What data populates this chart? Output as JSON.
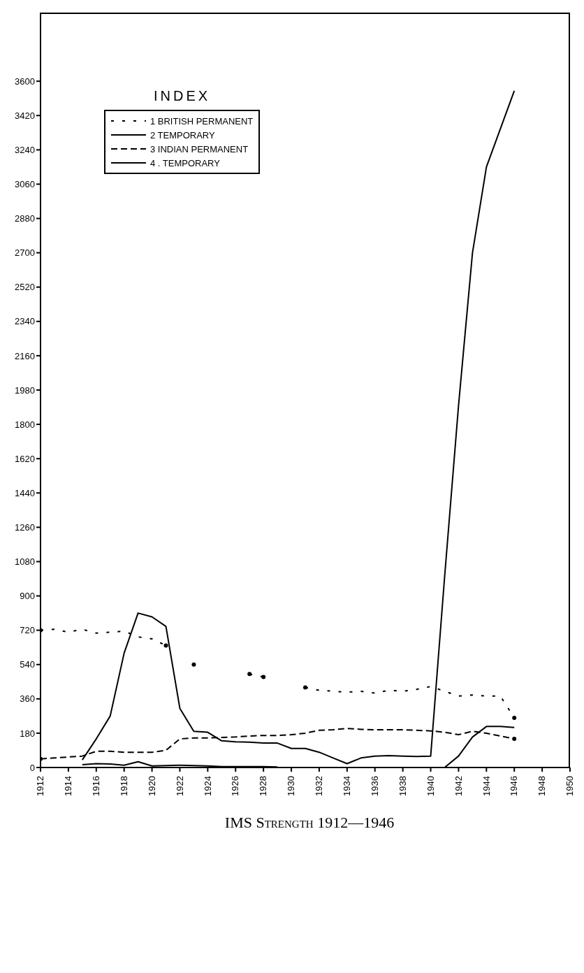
{
  "chart_data": {
    "type": "line",
    "xlabel": "IMS Strength 1912—1946",
    "legend_title": "INDEX",
    "legend": "top left",
    "x": [
      1912,
      1913,
      1914,
      1915,
      1916,
      1917,
      1918,
      1919,
      1920,
      1921,
      1922,
      1923,
      1924,
      1925,
      1926,
      1927,
      1928,
      1929,
      1930,
      1931,
      1932,
      1933,
      1934,
      1935,
      1936,
      1937,
      1938,
      1939,
      1940,
      1941,
      1942,
      1943,
      1944,
      1945,
      1946
    ],
    "xlim": [
      1912,
      1950
    ],
    "xticks": [
      1912,
      1914,
      1916,
      1918,
      1920,
      1922,
      1924,
      1926,
      1928,
      1930,
      1932,
      1934,
      1936,
      1938,
      1940,
      1942,
      1944,
      1946,
      1948,
      1950
    ],
    "ylim": [
      0,
      3960
    ],
    "yticks": [
      0,
      180,
      360,
      540,
      720,
      900,
      1080,
      1260,
      1440,
      1620,
      1800,
      1980,
      2160,
      2340,
      2520,
      2700,
      2880,
      3060,
      3240,
      3420,
      3600
    ],
    "marker": "none",
    "series": [
      {
        "name": "1 BRITISH PERMANENT",
        "color": "#000000",
        "line_style": "dotted",
        "values": [
          720,
          725,
          710,
          725,
          705,
          710,
          715,
          685,
          675,
          640,
          null,
          540,
          null,
          null,
          null,
          490,
          475,
          null,
          null,
          420,
          405,
          400,
          395,
          400,
          390,
          405,
          400,
          410,
          425,
          400,
          375,
          380,
          375,
          375,
          260
        ]
      },
      {
        "name": "2 TEMPORARY",
        "color": "#000000",
        "line_style": "solid",
        "values": [
          null,
          null,
          null,
          40,
          150,
          270,
          600,
          810,
          790,
          740,
          310,
          190,
          185,
          140,
          135,
          133,
          128,
          128,
          100,
          100,
          80,
          50,
          20,
          50,
          60,
          62,
          60,
          58,
          60,
          1000,
          1900,
          2700,
          3150,
          3350,
          3550
        ]
      },
      {
        "name": "3 INDIAN PERMANENT",
        "color": "#000000",
        "line_style": "dashed",
        "values": [
          45,
          50,
          55,
          60,
          85,
          85,
          80,
          80,
          80,
          90,
          150,
          155,
          155,
          158,
          160,
          165,
          168,
          168,
          172,
          180,
          195,
          198,
          205,
          200,
          198,
          198,
          198,
          195,
          192,
          185,
          172,
          190,
          180,
          165,
          150
        ]
      },
      {
        "name": "4 . TEMPORARY",
        "color": "#000000",
        "line_style": "solid",
        "values": [
          null,
          null,
          null,
          15,
          20,
          18,
          12,
          30,
          8,
          10,
          12,
          10,
          8,
          5,
          5,
          5,
          5,
          3,
          null,
          null,
          null,
          null,
          null,
          null,
          null,
          null,
          null,
          null,
          null,
          0,
          60,
          160,
          215,
          215,
          210
        ]
      }
    ]
  }
}
